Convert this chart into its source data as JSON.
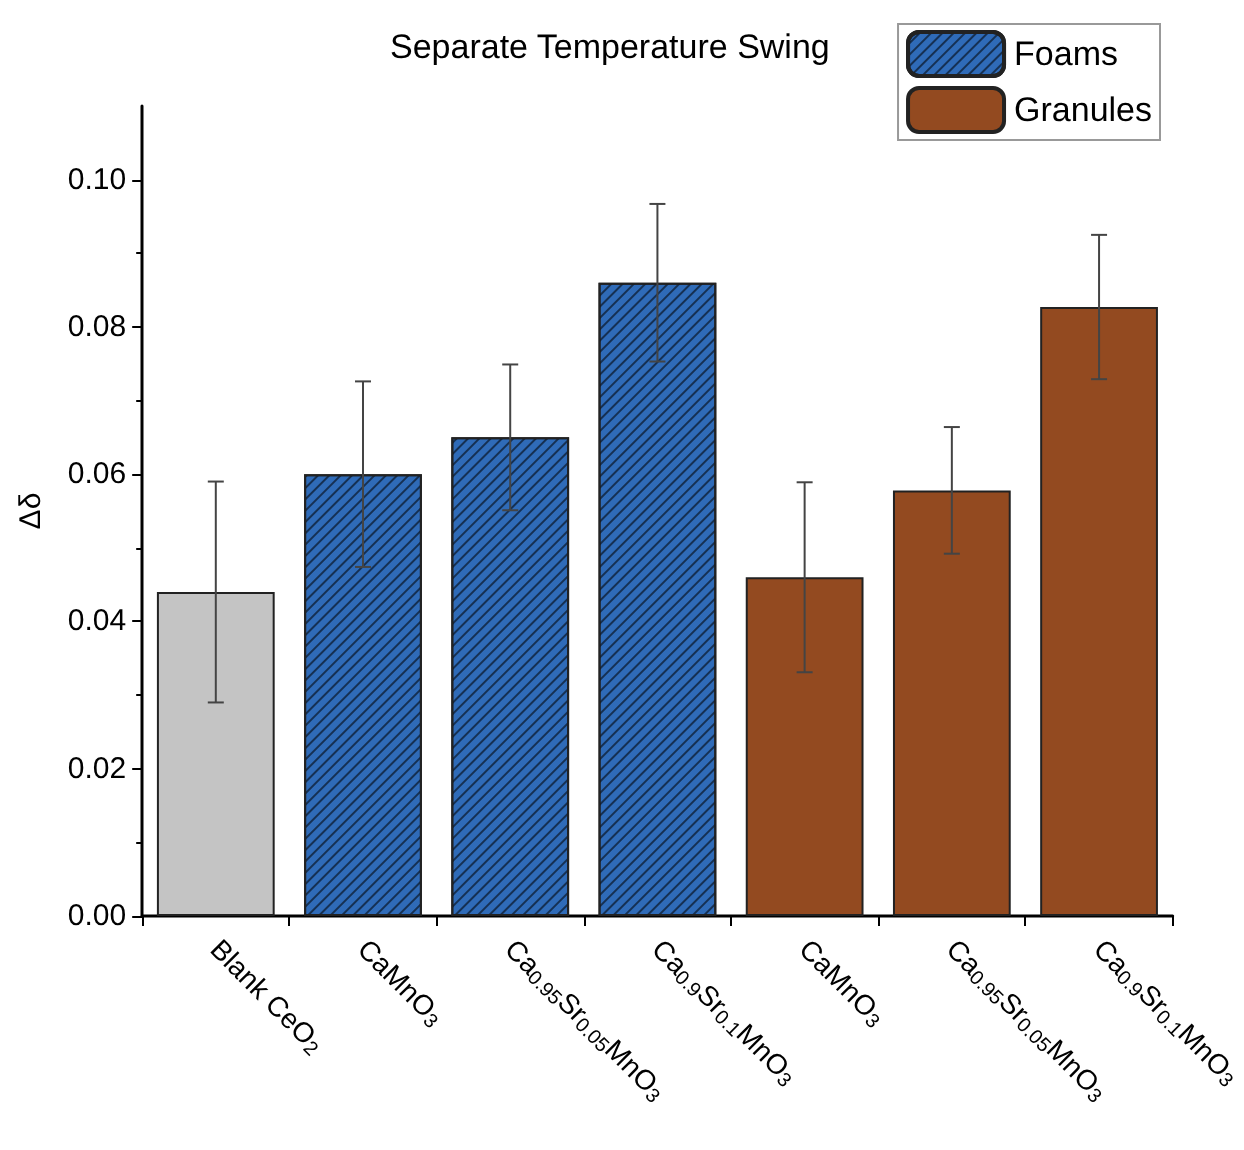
{
  "chart_data": {
    "type": "bar",
    "title": "Separate Temperature Swing",
    "ylabel": "Δδ",
    "categories": [
      "Blank CeO$_{2}$",
      "CaMnO$_{3}$",
      "Ca$_{0.95}$Sr$_{0.05}$MnO$_{3}$",
      "Ca$_{0.9}$Sr$_{0.1}$MnO$_{3}$",
      "CaMnO$_{3}$",
      "Ca$_{0.95}$Sr$_{0.05}$MnO$_{3}$",
      "Ca$_{0.9}$Sr$_{0.1}$MnO$_{3}$"
    ],
    "series": [
      {
        "color": "#c4c4c4",
        "values": [
          0.044,
          null,
          null,
          null,
          null,
          null,
          null
        ],
        "errors": [
          0.015,
          null,
          null,
          null,
          null,
          null,
          null
        ]
      },
      {
        "name": "Foams",
        "color": "#2f6bb8",
        "values": [
          null,
          0.06,
          0.065,
          0.086,
          null,
          null,
          null
        ],
        "errors": [
          null,
          0.0126,
          0.0099,
          0.0107,
          null,
          null,
          null
        ]
      },
      {
        "name": "Granules",
        "color": "#934a20",
        "values": [
          null,
          null,
          null,
          null,
          0.046,
          0.0578,
          0.0827
        ],
        "errors": [
          null,
          null,
          null,
          null,
          0.0129,
          0.0086,
          0.0098
        ]
      }
    ],
    "ylim": [
      0,
      0.11
    ],
    "yticks": [
      {
        "value": 0,
        "label": "0.00"
      },
      {
        "value": 0.02,
        "label": "0.02"
      },
      {
        "value": 0.04,
        "label": "0.04"
      },
      {
        "value": 0.06,
        "label": "0.06"
      },
      {
        "value": 0.08,
        "label": "0.08"
      },
      {
        "value": 0.1,
        "label": "0.10"
      }
    ],
    "grid": false,
    "legend": "top right"
  }
}
